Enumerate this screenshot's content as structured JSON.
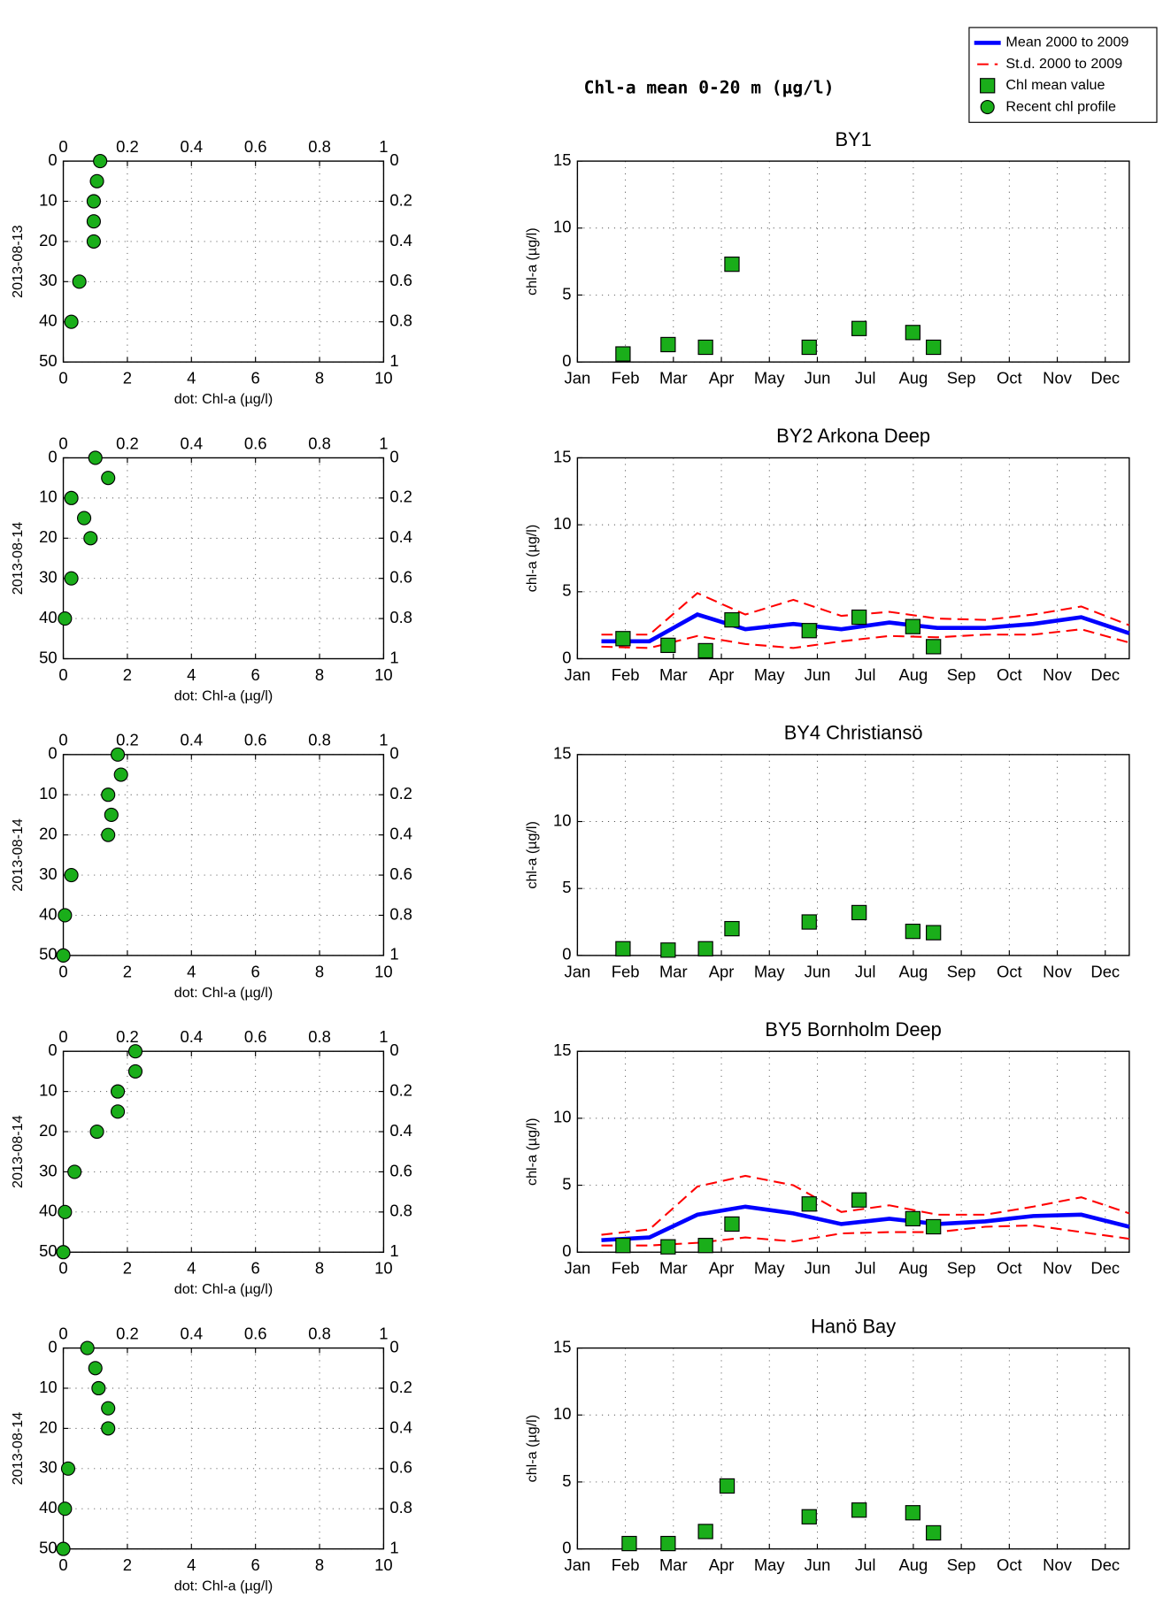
{
  "title": "Chl-a mean 0-20 m (µg/l)",
  "chart_data": [
    {
      "type": "scatter",
      "ylabel": "2013-08-13",
      "xlabel": "dot: Chl-a (µg/l)",
      "xlim": [
        0,
        10
      ],
      "xticks": [
        0,
        2,
        4,
        6,
        8,
        10
      ],
      "ylim": [
        0,
        50
      ],
      "yticks": [
        0,
        10,
        20,
        30,
        40,
        50
      ],
      "invert_y": true,
      "x2lim": [
        0,
        1
      ],
      "x2ticks": [
        0,
        0.2,
        0.4,
        0.6,
        0.8,
        1
      ],
      "y2lim": [
        0,
        1
      ],
      "y2ticks": [
        0,
        0.2,
        0.4,
        0.6,
        0.8,
        1
      ],
      "grid": true,
      "series": [
        {
          "name": "Recent chl profile",
          "color": "#1aae1a",
          "marker": "circle",
          "x": [
            1.15,
            1.05,
            0.95,
            0.95,
            0.95,
            0.5,
            0.25
          ],
          "values": [
            0,
            5,
            10,
            15,
            20,
            30,
            40
          ]
        }
      ]
    },
    {
      "type": "line",
      "title": "BY1",
      "ylabel": "chl-a (µg/l)",
      "xlim": [
        1,
        12.5
      ],
      "xticks": [
        {
          "value": 1,
          "label": "Jan"
        },
        {
          "value": 2,
          "label": "Feb"
        },
        {
          "value": 3,
          "label": "Mar"
        },
        {
          "value": 4,
          "label": "Apr"
        },
        {
          "value": 5,
          "label": "May"
        },
        {
          "value": 6,
          "label": "Jun"
        },
        {
          "value": 7,
          "label": "Jul"
        },
        {
          "value": 8,
          "label": "Aug"
        },
        {
          "value": 9,
          "label": "Sep"
        },
        {
          "value": 10,
          "label": "Oct"
        },
        {
          "value": 11,
          "label": "Nov"
        },
        {
          "value": 12,
          "label": "Dec"
        }
      ],
      "ylim": [
        0,
        15
      ],
      "yticks": [
        0,
        5,
        10,
        15
      ],
      "grid": true,
      "series": [
        {
          "name": "Chl mean value",
          "color": "#1aae1a",
          "marker": "square",
          "x": [
            1.95,
            2.89,
            3.67,
            4.22,
            5.83,
            6.87,
            7.99,
            8.42
          ],
          "values": [
            0.6,
            1.3,
            1.1,
            7.3,
            1.1,
            2.5,
            2.2,
            1.1
          ]
        }
      ]
    },
    {
      "type": "scatter",
      "ylabel": "2013-08-14",
      "xlabel": "dot: Chl-a (µg/l)",
      "xlim": [
        0,
        10
      ],
      "xticks": [
        0,
        2,
        4,
        6,
        8,
        10
      ],
      "ylim": [
        0,
        50
      ],
      "yticks": [
        0,
        10,
        20,
        30,
        40,
        50
      ],
      "invert_y": true,
      "x2lim": [
        0,
        1
      ],
      "x2ticks": [
        0,
        0.2,
        0.4,
        0.6,
        0.8,
        1
      ],
      "y2lim": [
        0,
        1
      ],
      "y2ticks": [
        0,
        0.2,
        0.4,
        0.6,
        0.8,
        1
      ],
      "grid": true,
      "series": [
        {
          "name": "Recent chl profile",
          "color": "#1aae1a",
          "marker": "circle",
          "x": [
            1.0,
            1.4,
            0.25,
            0.65,
            0.85,
            0.25,
            0.05
          ],
          "values": [
            0,
            5,
            10,
            15,
            20,
            30,
            40
          ]
        }
      ]
    },
    {
      "type": "line",
      "title": "BY2 Arkona Deep",
      "ylabel": "chl-a (µg/l)",
      "xlim": [
        1,
        12.5
      ],
      "xticks": [
        {
          "value": 1,
          "label": "Jan"
        },
        {
          "value": 2,
          "label": "Feb"
        },
        {
          "value": 3,
          "label": "Mar"
        },
        {
          "value": 4,
          "label": "Apr"
        },
        {
          "value": 5,
          "label": "May"
        },
        {
          "value": 6,
          "label": "Jun"
        },
        {
          "value": 7,
          "label": "Jul"
        },
        {
          "value": 8,
          "label": "Aug"
        },
        {
          "value": 9,
          "label": "Sep"
        },
        {
          "value": 10,
          "label": "Oct"
        },
        {
          "value": 11,
          "label": "Nov"
        },
        {
          "value": 12,
          "label": "Dec"
        }
      ],
      "ylim": [
        0,
        15
      ],
      "yticks": [
        0,
        5,
        10,
        15
      ],
      "grid": true,
      "series": [
        {
          "name": "Mean 2000 to 2009",
          "color": "#0000ff",
          "x": [
            1.5,
            2.5,
            3.5,
            4.5,
            5.5,
            6.5,
            7.5,
            8.5,
            9.5,
            10.5,
            11.5,
            12.5
          ],
          "values": [
            1.3,
            1.3,
            3.3,
            2.2,
            2.6,
            2.2,
            2.7,
            2.3,
            2.3,
            2.6,
            3.1,
            1.9
          ]
        },
        {
          "name": "St.d. 2000 to 2009",
          "color": "#ff0000",
          "x": [
            1.5,
            2.5,
            3.5,
            4.5,
            5.5,
            6.5,
            7.5,
            8.5,
            9.5,
            10.5,
            11.5,
            12.5
          ],
          "upper": [
            1.8,
            1.8,
            4.9,
            3.3,
            4.4,
            3.2,
            3.5,
            3.0,
            2.9,
            3.3,
            3.9,
            2.5
          ],
          "lower": [
            0.9,
            0.8,
            1.7,
            1.1,
            0.8,
            1.3,
            1.7,
            1.6,
            1.8,
            1.8,
            2.2,
            1.2
          ]
        },
        {
          "name": "Chl mean value",
          "color": "#1aae1a",
          "marker": "square",
          "x": [
            1.95,
            2.89,
            3.67,
            4.22,
            5.83,
            6.87,
            7.99,
            8.42
          ],
          "values": [
            1.5,
            1.0,
            0.6,
            2.9,
            2.1,
            3.1,
            2.4,
            0.9
          ]
        }
      ]
    },
    {
      "type": "scatter",
      "ylabel": "2013-08-14",
      "xlabel": "dot: Chl-a (µg/l)",
      "xlim": [
        0,
        10
      ],
      "xticks": [
        0,
        2,
        4,
        6,
        8,
        10
      ],
      "ylim": [
        0,
        50
      ],
      "yticks": [
        0,
        10,
        20,
        30,
        40,
        50
      ],
      "invert_y": true,
      "x2lim": [
        0,
        1
      ],
      "x2ticks": [
        0,
        0.2,
        0.4,
        0.6,
        0.8,
        1
      ],
      "y2lim": [
        0,
        1
      ],
      "y2ticks": [
        0,
        0.2,
        0.4,
        0.6,
        0.8,
        1
      ],
      "grid": true,
      "series": [
        {
          "name": "Recent chl profile",
          "color": "#1aae1a",
          "marker": "circle",
          "x": [
            1.7,
            1.8,
            1.4,
            1.5,
            1.4,
            0.25,
            0.05,
            0
          ],
          "values": [
            0,
            5,
            10,
            15,
            20,
            30,
            40,
            50
          ]
        }
      ]
    },
    {
      "type": "line",
      "title": "BY4 Christiansö",
      "ylabel": "chl-a (µg/l)",
      "xlim": [
        1,
        12.5
      ],
      "xticks": [
        {
          "value": 1,
          "label": "Jan"
        },
        {
          "value": 2,
          "label": "Feb"
        },
        {
          "value": 3,
          "label": "Mar"
        },
        {
          "value": 4,
          "label": "Apr"
        },
        {
          "value": 5,
          "label": "May"
        },
        {
          "value": 6,
          "label": "Jun"
        },
        {
          "value": 7,
          "label": "Jul"
        },
        {
          "value": 8,
          "label": "Aug"
        },
        {
          "value": 9,
          "label": "Sep"
        },
        {
          "value": 10,
          "label": "Oct"
        },
        {
          "value": 11,
          "label": "Nov"
        },
        {
          "value": 12,
          "label": "Dec"
        }
      ],
      "ylim": [
        0,
        15
      ],
      "yticks": [
        0,
        5,
        10,
        15
      ],
      "grid": true,
      "series": [
        {
          "name": "Chl mean value",
          "color": "#1aae1a",
          "marker": "square",
          "x": [
            1.95,
            2.89,
            3.67,
            4.22,
            5.83,
            6.87,
            7.99,
            8.42
          ],
          "values": [
            0.5,
            0.4,
            0.5,
            2.0,
            2.5,
            3.2,
            1.8,
            1.7
          ]
        }
      ]
    },
    {
      "type": "scatter",
      "ylabel": "2013-08-14",
      "xlabel": "dot: Chl-a (µg/l)",
      "xlim": [
        0,
        10
      ],
      "xticks": [
        0,
        2,
        4,
        6,
        8,
        10
      ],
      "ylim": [
        0,
        50
      ],
      "yticks": [
        0,
        10,
        20,
        30,
        40,
        50
      ],
      "invert_y": true,
      "x2lim": [
        0,
        1
      ],
      "x2ticks": [
        0,
        0.2,
        0.4,
        0.6,
        0.8,
        1
      ],
      "y2lim": [
        0,
        1
      ],
      "y2ticks": [
        0,
        0.2,
        0.4,
        0.6,
        0.8,
        1
      ],
      "grid": true,
      "series": [
        {
          "name": "Recent chl profile",
          "color": "#1aae1a",
          "marker": "circle",
          "x": [
            2.25,
            2.25,
            1.7,
            1.7,
            1.05,
            0.35,
            0.05,
            0
          ],
          "values": [
            0,
            5,
            10,
            15,
            20,
            30,
            40,
            50
          ]
        }
      ]
    },
    {
      "type": "line",
      "title": "BY5 Bornholm Deep",
      "ylabel": "chl-a (µg/l)",
      "xlim": [
        1,
        12.5
      ],
      "xticks": [
        {
          "value": 1,
          "label": "Jan"
        },
        {
          "value": 2,
          "label": "Feb"
        },
        {
          "value": 3,
          "label": "Mar"
        },
        {
          "value": 4,
          "label": "Apr"
        },
        {
          "value": 5,
          "label": "May"
        },
        {
          "value": 6,
          "label": "Jun"
        },
        {
          "value": 7,
          "label": "Jul"
        },
        {
          "value": 8,
          "label": "Aug"
        },
        {
          "value": 9,
          "label": "Sep"
        },
        {
          "value": 10,
          "label": "Oct"
        },
        {
          "value": 11,
          "label": "Nov"
        },
        {
          "value": 12,
          "label": "Dec"
        }
      ],
      "ylim": [
        0,
        15
      ],
      "yticks": [
        0,
        5,
        10,
        15
      ],
      "grid": true,
      "series": [
        {
          "name": "Mean 2000 to 2009",
          "color": "#0000ff",
          "x": [
            1.5,
            2.5,
            3.5,
            4.5,
            5.5,
            6.5,
            7.5,
            8.5,
            9.5,
            10.5,
            11.5,
            12.5
          ],
          "values": [
            0.9,
            1.1,
            2.8,
            3.4,
            2.9,
            2.1,
            2.5,
            2.1,
            2.3,
            2.7,
            2.8,
            1.9
          ]
        },
        {
          "name": "St.d. 2000 to 2009",
          "color": "#ff0000",
          "x": [
            1.5,
            2.5,
            3.5,
            4.5,
            5.5,
            6.5,
            7.5,
            8.5,
            9.5,
            10.5,
            11.5,
            12.5
          ],
          "upper": [
            1.3,
            1.7,
            4.9,
            5.7,
            5.0,
            3.0,
            3.5,
            2.8,
            2.8,
            3.4,
            4.1,
            2.9
          ],
          "lower": [
            0.5,
            0.5,
            0.7,
            1.1,
            0.8,
            1.4,
            1.5,
            1.5,
            1.9,
            2.0,
            1.5,
            1.0
          ]
        },
        {
          "name": "Chl mean value",
          "color": "#1aae1a",
          "marker": "square",
          "x": [
            1.95,
            2.89,
            3.67,
            4.22,
            5.83,
            6.87,
            7.99,
            8.42
          ],
          "values": [
            0.5,
            0.4,
            0.5,
            2.1,
            3.6,
            3.9,
            2.5,
            1.9
          ]
        }
      ]
    },
    {
      "type": "scatter",
      "ylabel": "2013-08-14",
      "xlabel": "dot: Chl-a (µg/l)",
      "xlim": [
        0,
        10
      ],
      "xticks": [
        0,
        2,
        4,
        6,
        8,
        10
      ],
      "ylim": [
        0,
        50
      ],
      "yticks": [
        0,
        10,
        20,
        30,
        40,
        50
      ],
      "invert_y": true,
      "x2lim": [
        0,
        1
      ],
      "x2ticks": [
        0,
        0.2,
        0.4,
        0.6,
        0.8,
        1
      ],
      "y2lim": [
        0,
        1
      ],
      "y2ticks": [
        0,
        0.2,
        0.4,
        0.6,
        0.8,
        1
      ],
      "grid": true,
      "series": [
        {
          "name": "Recent chl profile",
          "color": "#1aae1a",
          "marker": "circle",
          "x": [
            0.75,
            1.0,
            1.1,
            1.4,
            1.4,
            0.15,
            0.05,
            0
          ],
          "values": [
            0,
            5,
            10,
            15,
            20,
            30,
            40,
            50
          ]
        }
      ]
    },
    {
      "type": "line",
      "title": "Hanö Bay",
      "ylabel": "chl-a (µg/l)",
      "xlim": [
        1,
        12.5
      ],
      "xticks": [
        {
          "value": 1,
          "label": "Jan"
        },
        {
          "value": 2,
          "label": "Feb"
        },
        {
          "value": 3,
          "label": "Mar"
        },
        {
          "value": 4,
          "label": "Apr"
        },
        {
          "value": 5,
          "label": "May"
        },
        {
          "value": 6,
          "label": "Jun"
        },
        {
          "value": 7,
          "label": "Jul"
        },
        {
          "value": 8,
          "label": "Aug"
        },
        {
          "value": 9,
          "label": "Sep"
        },
        {
          "value": 10,
          "label": "Oct"
        },
        {
          "value": 11,
          "label": "Nov"
        },
        {
          "value": 12,
          "label": "Dec"
        }
      ],
      "ylim": [
        0,
        15
      ],
      "yticks": [
        0,
        5,
        10,
        15
      ],
      "grid": true,
      "series": [
        {
          "name": "Chl mean value",
          "color": "#1aae1a",
          "marker": "square",
          "x": [
            2.08,
            2.89,
            3.67,
            4.12,
            5.83,
            6.87,
            7.99,
            8.42
          ],
          "values": [
            0.4,
            0.4,
            1.3,
            4.7,
            2.4,
            2.9,
            2.7,
            1.2
          ]
        }
      ]
    }
  ]
}
